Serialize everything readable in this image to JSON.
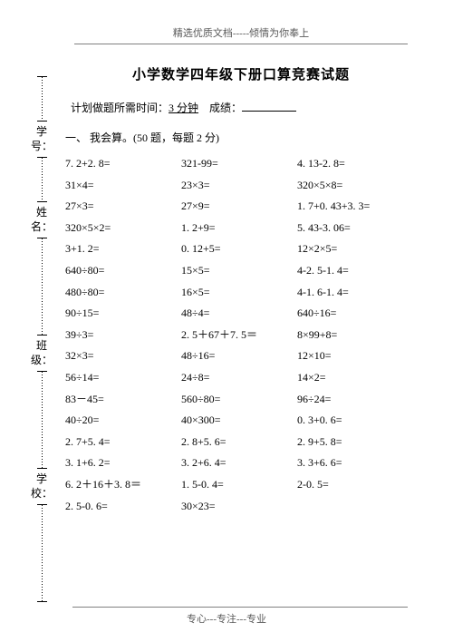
{
  "header": "精选优质文档-----倾情为你奉上",
  "title": "小学数学四年级下册口算竞赛试题",
  "plan_prefix": "计划做题所需时间：",
  "plan_time": "3 分钟",
  "score_label": "成绩：",
  "section_label": "一、 我会算。(50 题，每题 2 分)",
  "footer": "专心---专注---专业",
  "side": [
    "学号：",
    "姓名：",
    "班级：",
    "学校："
  ],
  "rows": [
    [
      "7. 2+2. 8=",
      "321-99=",
      "4. 13-2. 8="
    ],
    [
      "31×4=",
      "23×3=",
      "320×5×8="
    ],
    [
      "27×3=",
      "27×9=",
      "1. 7+0. 43+3. 3="
    ],
    [
      "320×5×2=",
      "1. 2+9=",
      "5. 43-3. 06="
    ],
    [
      "3+1. 2=",
      "0. 12+5=",
      "12×2×5="
    ],
    [
      "640÷80=",
      "15×5=",
      "4-2. 5-1. 4="
    ],
    [
      "480÷80=",
      "16×5=",
      "4-1. 6-1. 4="
    ],
    [
      "90÷15=",
      "48÷4=",
      "640÷16="
    ],
    [
      "39÷3=",
      "2. 5＋67＋7. 5＝",
      "8×99+8="
    ],
    [
      "32×3=",
      "48÷16=",
      "12×10="
    ],
    [
      "56÷14=",
      "24÷8=",
      "14×2="
    ],
    [
      "83－45=",
      "560÷80=",
      "96÷24="
    ],
    [
      "40÷20=",
      "40×300=",
      "0. 3+0. 6="
    ],
    [
      "2. 7+5. 4=",
      "2. 8+5. 6=",
      "2. 9+5. 8="
    ],
    [
      "3. 1+6. 2=",
      "3. 2+6. 4=",
      "3. 3+6. 6="
    ],
    [
      "6. 2＋16＋3. 8＝",
      "1. 5-0. 4=",
      "2-0. 5="
    ],
    [
      "2. 5-0. 6=",
      "30×23=",
      ""
    ]
  ]
}
